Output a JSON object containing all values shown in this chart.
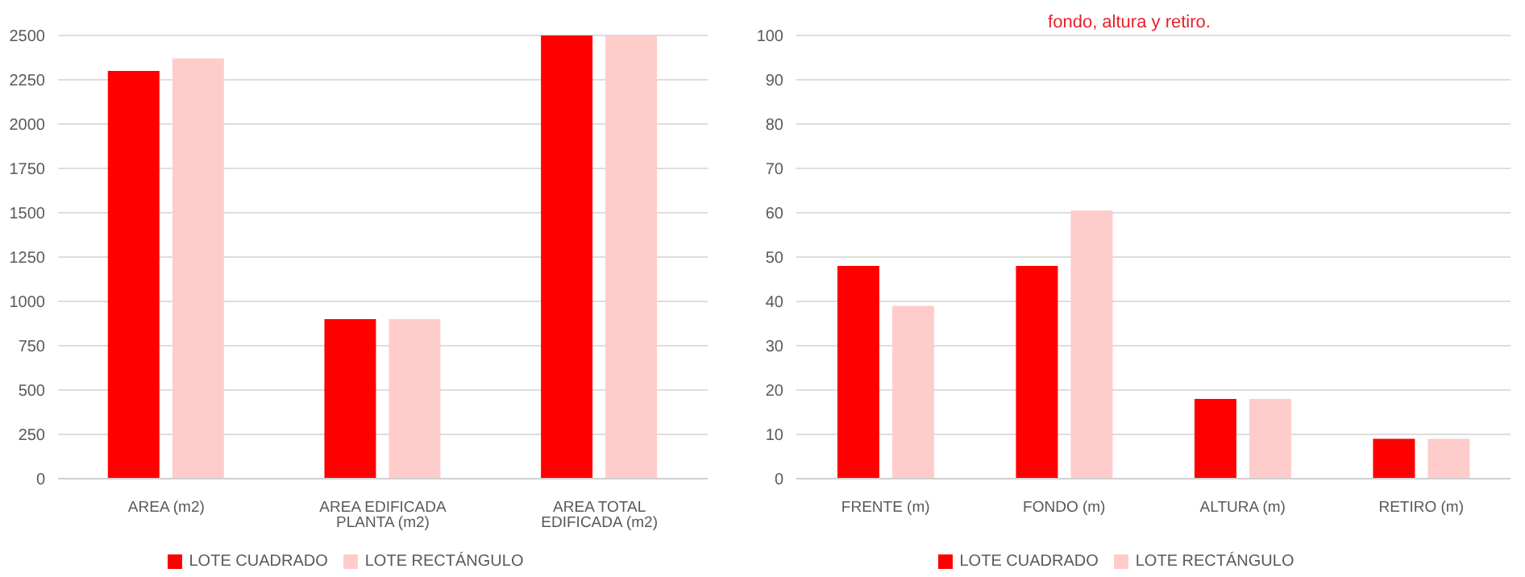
{
  "chart_data": [
    {
      "type": "bar",
      "categories": [
        "AREA (m2)",
        "AREA EDIFICADA PLANTA (m2)",
        "AREA TOTAL EDIFICADA (m2)"
      ],
      "series": [
        {
          "name": "LOTE CUADRADO",
          "color": "#ff0000",
          "values": [
            2300,
            900,
            2500
          ]
        },
        {
          "name": "LOTE RECTÁNGULO",
          "color": "#ffcccc",
          "values": [
            2370,
            900,
            2500
          ]
        }
      ],
      "ylim": [
        0,
        2500
      ],
      "yticks": [
        0,
        250,
        500,
        750,
        1000,
        1250,
        1500,
        1750,
        2000,
        2250,
        2500
      ],
      "grid": "y",
      "legend": "bottom"
    },
    {
      "type": "bar",
      "title": "fondo, altura y retiro.",
      "categories": [
        "FRENTE (m)",
        "FONDO (m)",
        "ALTURA (m)",
        "RETIRO (m)"
      ],
      "series": [
        {
          "name": "LOTE CUADRADO",
          "color": "#ff0000",
          "values": [
            48,
            48,
            18,
            9
          ]
        },
        {
          "name": "LOTE RECTÁNGULO",
          "color": "#ffcccc",
          "values": [
            39,
            60.5,
            18,
            9
          ]
        }
      ],
      "ylim": [
        0,
        100
      ],
      "yticks": [
        0,
        10,
        20,
        30,
        40,
        50,
        60,
        70,
        80,
        90,
        100
      ],
      "grid": "y",
      "legend": "bottom"
    }
  ]
}
